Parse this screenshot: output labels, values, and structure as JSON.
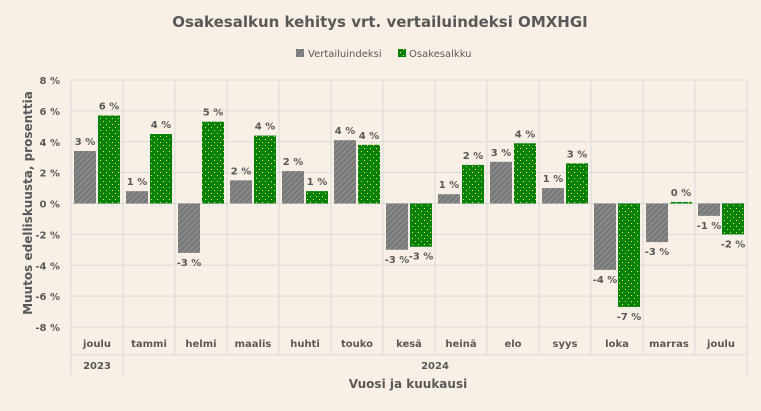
{
  "chart_data": {
    "type": "bar",
    "title": "Osakesalkun kehitys vrt. vertailuindeksi OMXHGI",
    "xlabel": "Vuosi ja kuukausi",
    "ylabel": "Muutos edelliskuusta, prosenttia",
    "ylim": [
      -8,
      8
    ],
    "yticks": [
      8,
      6,
      4,
      2,
      0,
      -2,
      -4,
      -6,
      -8
    ],
    "ytick_labels": [
      "8 %",
      "6 %",
      "4 %",
      "2 %",
      "0 %",
      "-2 %",
      "-4 %",
      "-6 %",
      "-8 %"
    ],
    "grid": true,
    "legend_position": "top",
    "categories": [
      "joulu",
      "tammi",
      "helmi",
      "maalis",
      "huhti",
      "touko",
      "kesä",
      "heinä",
      "elo",
      "syys",
      "loka",
      "marras",
      "joulu"
    ],
    "year_groups": [
      {
        "label": "2023",
        "count": 1
      },
      {
        "label": "2024",
        "count": 12
      }
    ],
    "series": [
      {
        "name": "Vertailuindeksi",
        "color": "#808080",
        "pattern": "diagonal-stripes",
        "values": [
          3.4,
          0.8,
          -3.2,
          1.5,
          2.1,
          4.1,
          -3.0,
          0.6,
          2.7,
          1.0,
          -4.3,
          -2.5,
          -0.8
        ],
        "labels": [
          "3 %",
          "1 %",
          "-3 %",
          "2 %",
          "2 %",
          "4 %",
          "-3 %",
          "1 %",
          "3 %",
          "1 %",
          "-4 %",
          "-3 %",
          "-1 %"
        ]
      },
      {
        "name": "Osakesalkku",
        "color": "#008000",
        "pattern": "yellow-dots",
        "values": [
          5.7,
          4.5,
          5.3,
          4.4,
          0.8,
          3.8,
          -2.8,
          2.5,
          3.9,
          2.6,
          -6.7,
          0.1,
          -2.0
        ],
        "labels": [
          "6 %",
          "4 %",
          "5 %",
          "4 %",
          "1 %",
          "4 %",
          "-3 %",
          "2 %",
          "4 %",
          "3 %",
          "-7 %",
          "0 %",
          "-2 %"
        ]
      }
    ]
  }
}
